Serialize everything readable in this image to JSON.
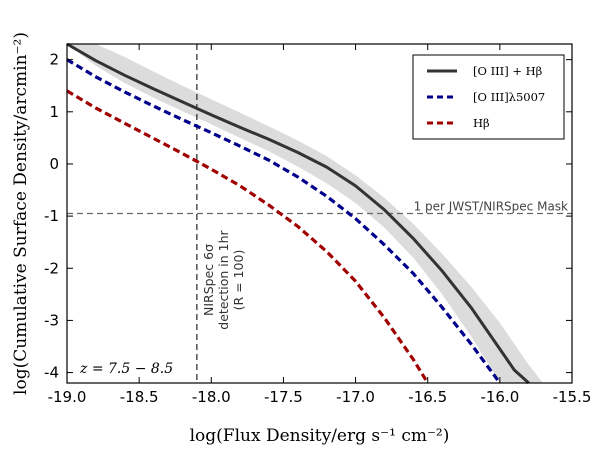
{
  "chart_data": {
    "type": "line",
    "xlabel": "log(Flux Density/erg s⁻¹ cm⁻²)",
    "ylabel": "log(Cumulative Surface Density/arcmin⁻²)",
    "xlim": [
      -19.0,
      -15.5
    ],
    "ylim": [
      -4.2,
      2.3
    ],
    "x_ticks": [
      "-19.0",
      "-18.5",
      "-18.0",
      "-17.5",
      "-17.0",
      "-16.5",
      "-16.0",
      "-15.5"
    ],
    "y_ticks": [
      "2",
      "1",
      "0",
      "-1",
      "-2",
      "-3",
      "-4"
    ],
    "x_tick_values": [
      -19.0,
      -18.5,
      -18.0,
      -17.5,
      -17.0,
      -16.5,
      -16.0,
      -15.5
    ],
    "y_tick_values": [
      2,
      1,
      0,
      -1,
      -2,
      -3,
      -4
    ],
    "grid": false,
    "legend_position": "top-right",
    "series": [
      {
        "name": "[O III] + Hβ",
        "style": "solid",
        "color": "#333333",
        "x": [
          -19.0,
          -18.8,
          -18.6,
          -18.4,
          -18.2,
          -18.0,
          -17.8,
          -17.6,
          -17.4,
          -17.2,
          -17.0,
          -16.8,
          -16.6,
          -16.4,
          -16.2,
          -16.0,
          -15.9,
          -15.8
        ],
        "y": [
          2.3,
          1.98,
          1.7,
          1.44,
          1.19,
          0.94,
          0.7,
          0.47,
          0.22,
          -0.06,
          -0.42,
          -0.88,
          -1.43,
          -2.05,
          -2.75,
          -3.55,
          -3.95,
          -4.2
        ]
      },
      {
        "name": "[O III]λ5007",
        "style": "dashed",
        "color": "#00008b",
        "x": [
          -19.0,
          -18.8,
          -18.6,
          -18.4,
          -18.2,
          -18.0,
          -17.8,
          -17.6,
          -17.4,
          -17.2,
          -17.0,
          -16.8,
          -16.6,
          -16.4,
          -16.2,
          -16.0
        ],
        "y": [
          2.0,
          1.67,
          1.38,
          1.11,
          0.85,
          0.6,
          0.34,
          0.07,
          -0.25,
          -0.62,
          -1.05,
          -1.55,
          -2.1,
          -2.75,
          -3.45,
          -4.2
        ]
      },
      {
        "name": "Hβ",
        "style": "dashed",
        "color": "#a00000",
        "x": [
          -19.0,
          -18.8,
          -18.6,
          -18.4,
          -18.2,
          -18.0,
          -17.8,
          -17.6,
          -17.4,
          -17.2,
          -17.0,
          -16.8,
          -16.6,
          -16.5
        ],
        "y": [
          1.4,
          1.07,
          0.78,
          0.49,
          0.2,
          -0.1,
          -0.42,
          -0.79,
          -1.2,
          -1.68,
          -2.25,
          -2.95,
          -3.75,
          -4.2
        ]
      }
    ],
    "uncertainty_band": {
      "series": "[O III] + Hβ",
      "color": "#dcdcdc",
      "x": [
        -19.0,
        -18.8,
        -18.6,
        -18.4,
        -18.2,
        -18.0,
        -17.8,
        -17.6,
        -17.4,
        -17.2,
        -17.0,
        -16.8,
        -16.6,
        -16.4,
        -16.2,
        -16.0,
        -15.8,
        -15.7
      ],
      "y_upper": [
        2.3,
        2.3,
        2.05,
        1.77,
        1.5,
        1.24,
        0.98,
        0.72,
        0.45,
        0.15,
        -0.22,
        -0.65,
        -1.15,
        -1.72,
        -2.35,
        -3.05,
        -3.85,
        -4.2
      ],
      "y_lower": [
        2.3,
        1.88,
        1.55,
        1.27,
        1.01,
        0.76,
        0.5,
        0.24,
        -0.05,
        -0.37,
        -0.75,
        -1.22,
        -1.8,
        -2.5,
        -3.3,
        -4.2,
        -4.2,
        -4.2
      ]
    },
    "reference_lines": [
      {
        "orientation": "horizontal",
        "y": -0.95,
        "label": "1 per JWST/NIRSpec Mask"
      },
      {
        "orientation": "vertical",
        "x": -18.1,
        "label_lines": [
          "NIRSpec 6σ",
          "detection in 1hr",
          "(R = 100)"
        ]
      }
    ],
    "annotations": [
      {
        "text": "z = 7.5 − 8.5",
        "position": "bottom-left"
      }
    ]
  }
}
